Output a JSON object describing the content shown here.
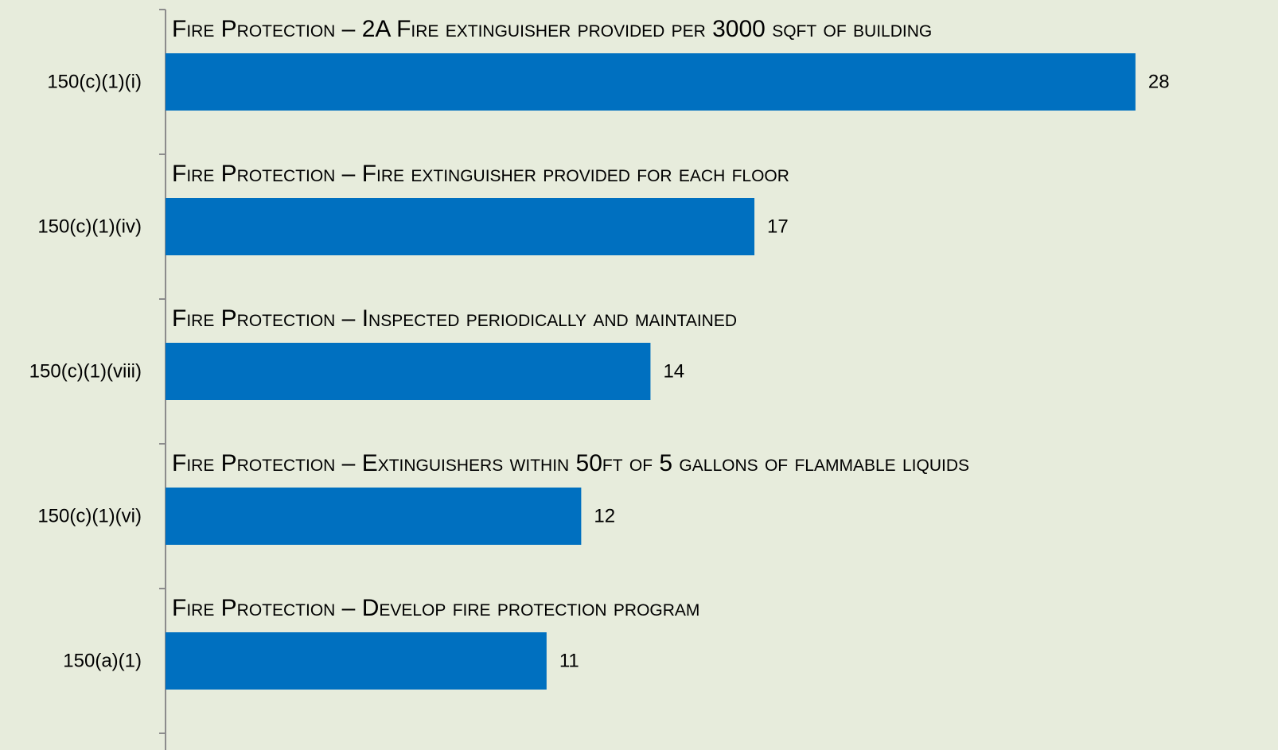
{
  "chart_data": {
    "type": "barh",
    "categories": [
      "150(c)(1)(i)",
      "150(c)(1)(iv)",
      "150(c)(1)(viii)",
      "150(c)(1)(vi)",
      "150(a)(1)"
    ],
    "descriptions": [
      "Fire Protection – 2A Fire extinguisher provided per 3000 sqft of building",
      "Fire Protection – Fire extinguisher provided for each floor",
      "Fire Protection – Inspected periodically and maintained",
      "Fire Protection – Extinguishers within 50ft of 5 gallons of flammable liquids",
      "Fire Protection – Develop fire protection program"
    ],
    "values": [
      28,
      17,
      14,
      12,
      11
    ],
    "color": "#0070c0",
    "xlim": [
      0,
      32
    ]
  }
}
